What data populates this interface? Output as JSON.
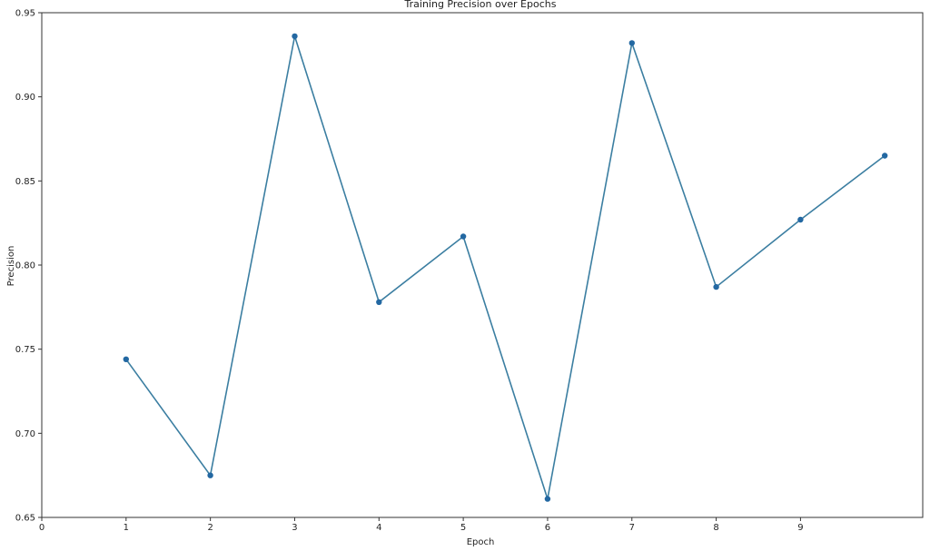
{
  "chart_data": {
    "type": "line",
    "title": "Training Precision over Epochs",
    "xlabel": "Epoch",
    "ylabel": "Precision",
    "x": [
      1,
      2,
      3,
      4,
      5,
      6,
      7,
      8,
      9,
      10
    ],
    "series": [
      {
        "values": [
          0.744,
          0.675,
          0.936,
          0.778,
          0.817,
          0.661,
          0.932,
          0.787,
          0.827,
          0.865
        ]
      }
    ],
    "xlim": [
      0,
      10.45
    ],
    "ylim": [
      0.65,
      0.95
    ],
    "xticks": [
      0,
      1,
      2,
      3,
      4,
      5,
      6,
      7,
      8,
      9
    ],
    "xtick_labels": [
      "0",
      "1",
      "2",
      "3",
      "4",
      "5",
      "6",
      "7",
      "8",
      "9"
    ],
    "yticks": [
      0.65,
      0.7,
      0.75,
      0.8,
      0.85,
      0.9,
      0.95
    ],
    "ytick_labels": [
      "0.65",
      "0.70",
      "0.75",
      "0.80",
      "0.85",
      "0.90",
      "0.95"
    ],
    "grid": false,
    "legend": false,
    "color": "#3b7ea1",
    "marker_color": "#2368a2"
  }
}
